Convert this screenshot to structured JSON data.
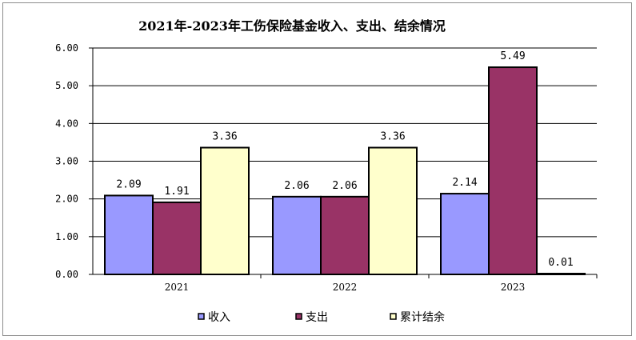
{
  "chart_data": {
    "type": "bar",
    "title": "2021年-2023年工伤保险基金收入、支出、结余情况",
    "categories": [
      "2021",
      "2022",
      "2023"
    ],
    "series": [
      {
        "name": "收入",
        "values": [
          2.09,
          2.06,
          2.14
        ],
        "labels": [
          "2.09",
          "2.06",
          "2.14"
        ],
        "color": "#9999ff"
      },
      {
        "name": "支出",
        "values": [
          1.91,
          2.06,
          5.49
        ],
        "labels": [
          "1.91",
          "2.06",
          "5.49"
        ],
        "color": "#993366"
      },
      {
        "name": "累计结余",
        "values": [
          3.36,
          3.36,
          0.01
        ],
        "labels": [
          "3.36",
          "3.36",
          "0.01"
        ],
        "color": "#ffffcc"
      }
    ],
    "ylim": [
      0,
      6
    ],
    "yticks": [
      "0.00",
      "1.00",
      "2.00",
      "3.00",
      "4.00",
      "5.00",
      "6.00"
    ],
    "grid": true,
    "legend_position": "bottom"
  }
}
